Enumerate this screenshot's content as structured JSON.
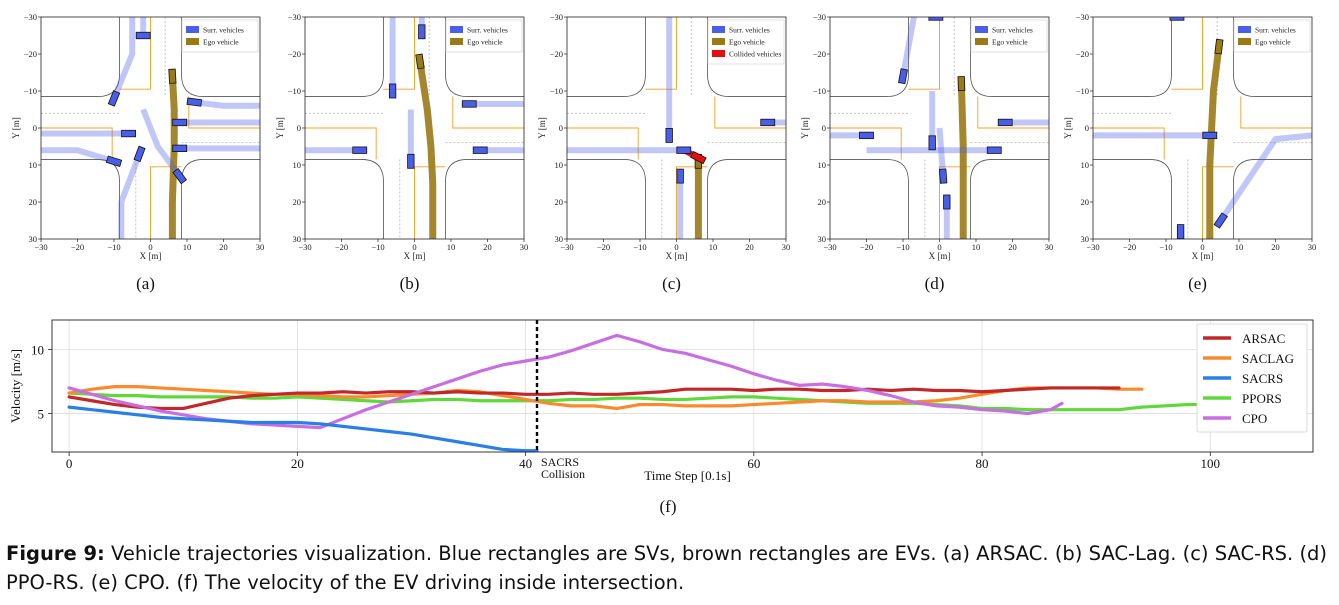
{
  "panels": [
    {
      "id": "a",
      "label": "(a)",
      "legend": [
        "Surr. vehicles",
        "Ego vehicle"
      ],
      "xlabel": "X [m]",
      "ylabel": "Y [m]"
    },
    {
      "id": "b",
      "label": "(b)",
      "legend": [
        "Surr. vehicles",
        "Ego vehicle"
      ],
      "xlabel": "X [m]",
      "ylabel": "Y [m]"
    },
    {
      "id": "c",
      "label": "(c)",
      "legend": [
        "Surr. vehicles",
        "Ego vehicle",
        "Collided vehicles"
      ],
      "xlabel": "X [m]",
      "ylabel": "Y [m]"
    },
    {
      "id": "d",
      "label": "(d)",
      "legend": [
        "Surr. vehicles",
        "Ego vehicle"
      ],
      "xlabel": "X [m]",
      "ylabel": "Y [m]"
    },
    {
      "id": "e",
      "label": "(e)",
      "legend": [
        "Surr. vehicles",
        "Ego vehicle"
      ],
      "xlabel": "X [m]",
      "ylabel": "Y [m]"
    }
  ],
  "velocity_panel_label": "(f)",
  "caption": {
    "figure_label": "Figure 9:",
    "text": " Vehicle trajectories visualization. Blue rectangles are SVs, brown rectangles are EVs. (a) ARSAC. (b) SAC-Lag. (c) SAC-RS. (d) PPO-RS. (e) CPO. (f) The velocity of the EV driving inside intersection."
  },
  "colors": {
    "surr": "#4a5ee8",
    "ego": "#9a7a16",
    "collided": "#e01010",
    "lane_orange": "#f0a020",
    "ARSAC": "#c0282a",
    "SACLAG": "#fb8a2e",
    "SACRS": "#2a7fe6",
    "PPORS": "#5fd83a",
    "CPO": "#c76ee0"
  },
  "chart_data": [
    {
      "type": "scatter",
      "title": "(a)",
      "xlabel": "X [m]",
      "ylabel": "Y [m]",
      "xlim": [
        -30,
        30
      ],
      "ylim": [
        30,
        -30
      ],
      "xticks": [
        -30,
        -20,
        -10,
        0,
        10,
        20,
        30
      ],
      "yticks": [
        -30,
        -20,
        -10,
        0,
        10,
        20,
        30
      ],
      "legend": [
        "Surr. vehicles",
        "Ego vehicle"
      ],
      "series": [
        {
          "name": "Ego vehicle",
          "x": [
            6,
            6,
            6.5,
            6.5,
            6
          ],
          "y": [
            30,
            20,
            5,
            -5,
            -14
          ]
        },
        {
          "name": "Surr. vehicles",
          "x": [
            -30,
            -20,
            -6
          ],
          "y": [
            1.5,
            1.5,
            1.5
          ]
        },
        {
          "name": "Surr. vehicles",
          "x": [
            30,
            20,
            8
          ],
          "y": [
            5.5,
            5.5,
            5.5
          ]
        },
        {
          "name": "Surr. vehicles",
          "x": [
            30,
            20,
            12
          ],
          "y": [
            -6,
            -6,
            -7
          ]
        },
        {
          "name": "Surr. vehicles",
          "x": [
            30,
            15,
            8
          ],
          "y": [
            -1.5,
            -1.5,
            -1.5
          ]
        },
        {
          "name": "Surr. vehicles",
          "x": [
            -30,
            -20,
            -10
          ],
          "y": [
            6,
            6,
            9
          ]
        },
        {
          "name": "Surr. vehicles",
          "x": [
            -5,
            -5,
            -10
          ],
          "y": [
            -30,
            -20,
            -8
          ]
        },
        {
          "name": "Surr. vehicles",
          "x": [
            -2,
            -2,
            -2
          ],
          "y": [
            -30,
            -25,
            -25
          ]
        },
        {
          "name": "Surr. vehicles",
          "x": [
            -2,
            2,
            8
          ],
          "y": [
            -5,
            5,
            13
          ]
        },
        {
          "name": "Surr. vehicles",
          "x": [
            -8,
            -8,
            -3
          ],
          "y": [
            30,
            20,
            7
          ]
        }
      ]
    },
    {
      "type": "scatter",
      "title": "(b)",
      "xlabel": "X [m]",
      "ylabel": "Y [m]",
      "xlim": [
        -30,
        30
      ],
      "ylim": [
        30,
        -30
      ],
      "xticks": [
        -30,
        -20,
        -10,
        0,
        10,
        20,
        30
      ],
      "yticks": [
        -30,
        -20,
        -10,
        0,
        10,
        20,
        30
      ],
      "legend": [
        "Surr. vehicles",
        "Ego vehicle"
      ],
      "series": [
        {
          "name": "Ego vehicle",
          "x": [
            5,
            5,
            4.5,
            3.5,
            1.5
          ],
          "y": [
            30,
            15,
            5,
            -5,
            -18
          ]
        },
        {
          "name": "Surr. vehicles",
          "x": [
            -30,
            -15
          ],
          "y": [
            6,
            6
          ]
        },
        {
          "name": "Surr. vehicles",
          "x": [
            30,
            18
          ],
          "y": [
            6,
            6
          ]
        },
        {
          "name": "Surr. vehicles",
          "x": [
            30,
            15
          ],
          "y": [
            -6.5,
            -6.5
          ]
        },
        {
          "name": "Surr. vehicles",
          "x": [
            -6,
            -6
          ],
          "y": [
            -30,
            -10
          ]
        },
        {
          "name": "Surr. vehicles",
          "x": [
            2,
            2
          ],
          "y": [
            -30,
            -26
          ]
        },
        {
          "name": "Surr. vehicles",
          "x": [
            -1,
            -1
          ],
          "y": [
            -5,
            9
          ]
        }
      ]
    },
    {
      "type": "scatter",
      "title": "(c)",
      "xlabel": "X [m]",
      "ylabel": "Y [m]",
      "xlim": [
        -30,
        30
      ],
      "ylim": [
        30,
        -30
      ],
      "xticks": [
        -30,
        -20,
        -10,
        0,
        10,
        20,
        30
      ],
      "yticks": [
        -30,
        -20,
        -10,
        0,
        10,
        20,
        30
      ],
      "legend": [
        "Surr. vehicles",
        "Ego vehicle",
        "Collided vehicles"
      ],
      "series": [
        {
          "name": "Ego vehicle",
          "x": [
            6,
            6
          ],
          "y": [
            30,
            9
          ]
        },
        {
          "name": "Collided vehicles",
          "x": [
            2,
            6
          ],
          "y": [
            6,
            8
          ]
        },
        {
          "name": "Surr. vehicles",
          "x": [
            -30,
            2
          ],
          "y": [
            6,
            6
          ]
        },
        {
          "name": "Surr. vehicles",
          "x": [
            30,
            25
          ],
          "y": [
            -1.5,
            -1.5
          ]
        },
        {
          "name": "Surr. vehicles",
          "x": [
            -2,
            -2
          ],
          "y": [
            -30,
            2
          ]
        },
        {
          "name": "Surr. vehicles",
          "x": [
            1,
            1
          ],
          "y": [
            30,
            13
          ]
        }
      ]
    },
    {
      "type": "scatter",
      "title": "(d)",
      "xlabel": "X [m]",
      "ylabel": "Y [m]",
      "xlim": [
        -30,
        30
      ],
      "ylim": [
        30,
        -30
      ],
      "xticks": [
        -30,
        -20,
        -10,
        0,
        10,
        20,
        30
      ],
      "yticks": [
        -30,
        -20,
        -10,
        0,
        10,
        20,
        30
      ],
      "legend": [
        "Surr. vehicles",
        "Ego vehicle"
      ],
      "series": [
        {
          "name": "Ego vehicle",
          "x": [
            6.5,
            6.5,
            6
          ],
          "y": [
            30,
            5,
            -12
          ]
        },
        {
          "name": "Surr. vehicles",
          "x": [
            -30,
            -20
          ],
          "y": [
            2,
            2
          ]
        },
        {
          "name": "Surr. vehicles",
          "x": [
            -20,
            15
          ],
          "y": [
            6,
            6
          ]
        },
        {
          "name": "Surr. vehicles",
          "x": [
            30,
            18
          ],
          "y": [
            -1.5,
            -1.5
          ]
        },
        {
          "name": "Surr. vehicles",
          "x": [
            -7,
            -10
          ],
          "y": [
            -30,
            -14
          ]
        },
        {
          "name": "Surr. vehicles",
          "x": [
            -2,
            -2
          ],
          "y": [
            -10,
            4
          ]
        },
        {
          "name": "Surr. vehicles",
          "x": [
            0,
            1
          ],
          "y": [
            0,
            13
          ]
        },
        {
          "name": "Surr. vehicles",
          "x": [
            2,
            2
          ],
          "y": [
            30,
            20
          ]
        },
        {
          "name": "Surr. vehicles",
          "x": [
            -1,
            -1
          ],
          "y": [
            -30,
            -30
          ]
        }
      ]
    },
    {
      "type": "scatter",
      "title": "(e)",
      "xlabel": "X [m]",
      "ylabel": "Y [m]",
      "xlim": [
        -30,
        30
      ],
      "ylim": [
        30,
        -30
      ],
      "xticks": [
        -30,
        -20,
        -10,
        0,
        10,
        20,
        30
      ],
      "yticks": [
        -30,
        -20,
        -10,
        0,
        10,
        20,
        30
      ],
      "legend": [
        "Surr. vehicles",
        "Ego vehicle"
      ],
      "series": [
        {
          "name": "Ego vehicle",
          "x": [
            2,
            2,
            3,
            4.5
          ],
          "y": [
            30,
            10,
            -10,
            -22
          ]
        },
        {
          "name": "Surr. vehicles",
          "x": [
            -30,
            2
          ],
          "y": [
            2,
            2
          ]
        },
        {
          "name": "Surr. vehicles",
          "x": [
            30,
            20,
            5
          ],
          "y": [
            2,
            3,
            25
          ]
        },
        {
          "name": "Surr. vehicles",
          "x": [
            -6,
            -6
          ],
          "y": [
            30,
            28
          ]
        },
        {
          "name": "Surr. vehicles",
          "x": [
            -7,
            -7
          ],
          "y": [
            -30,
            -30
          ]
        }
      ]
    },
    {
      "type": "line",
      "title": "(f)",
      "xlabel": "Time Step [0.1s]",
      "ylabel": "Velocity [m/s]",
      "xlim": [
        -1.5,
        109
      ],
      "ylim": [
        2,
        12.3
      ],
      "xticks": [
        0,
        20,
        40,
        60,
        80,
        100
      ],
      "yticks": [
        5,
        10
      ],
      "annotation": {
        "x": 41,
        "text_line1": "SACRS",
        "text_line2": "Collision"
      },
      "legend": [
        "ARSAC",
        "SACLAG",
        "SACRS",
        "PPORS",
        "CPO"
      ],
      "series": [
        {
          "name": "ARSAC",
          "x": [
            0,
            2,
            4,
            6,
            8,
            10,
            12,
            14,
            16,
            18,
            20,
            22,
            24,
            26,
            28,
            30,
            32,
            34,
            36,
            38,
            40,
            42,
            44,
            46,
            48,
            50,
            52,
            54,
            56,
            58,
            60,
            62,
            64,
            66,
            68,
            70,
            72,
            74,
            76,
            78,
            80,
            82,
            84,
            86,
            88,
            90,
            92
          ],
          "values": [
            6.3,
            6.0,
            5.7,
            5.5,
            5.4,
            5.4,
            5.8,
            6.2,
            6.4,
            6.5,
            6.6,
            6.6,
            6.7,
            6.6,
            6.7,
            6.7,
            6.6,
            6.7,
            6.6,
            6.6,
            6.5,
            6.5,
            6.6,
            6.5,
            6.5,
            6.6,
            6.7,
            6.9,
            6.9,
            6.9,
            6.8,
            6.9,
            6.9,
            6.8,
            6.8,
            6.9,
            6.8,
            6.9,
            6.8,
            6.8,
            6.7,
            6.8,
            6.9,
            7.0,
            7.0,
            7.0,
            7.0
          ]
        },
        {
          "name": "SACLAG",
          "x": [
            0,
            2,
            4,
            6,
            8,
            10,
            12,
            14,
            16,
            18,
            20,
            22,
            24,
            26,
            28,
            30,
            32,
            34,
            36,
            38,
            40,
            42,
            44,
            46,
            48,
            50,
            52,
            54,
            56,
            58,
            60,
            62,
            64,
            66,
            68,
            70,
            72,
            74,
            76,
            78,
            80,
            82,
            84,
            86,
            88,
            90,
            92,
            94
          ],
          "values": [
            6.6,
            6.9,
            7.1,
            7.1,
            7.0,
            6.9,
            6.8,
            6.7,
            6.6,
            6.5,
            6.5,
            6.4,
            6.3,
            6.3,
            6.4,
            6.5,
            6.6,
            6.8,
            6.7,
            6.4,
            6.1,
            5.8,
            5.6,
            5.6,
            5.4,
            5.7,
            5.7,
            5.6,
            5.6,
            5.6,
            5.7,
            5.8,
            5.9,
            6.0,
            6.0,
            5.9,
            5.9,
            5.9,
            6.0,
            6.2,
            6.5,
            6.8,
            7.0,
            7.0,
            7.0,
            7.0,
            6.9,
            6.9
          ]
        },
        {
          "name": "SACRS",
          "x": [
            0,
            2,
            4,
            6,
            8,
            10,
            12,
            14,
            16,
            18,
            20,
            22,
            24,
            26,
            28,
            30,
            32,
            34,
            36,
            38,
            40,
            41
          ],
          "values": [
            5.5,
            5.3,
            5.1,
            4.9,
            4.7,
            4.6,
            4.5,
            4.4,
            4.3,
            4.3,
            4.3,
            4.2,
            4.0,
            3.8,
            3.6,
            3.4,
            3.1,
            2.8,
            2.5,
            2.2,
            2.1,
            2.1
          ]
        },
        {
          "name": "PPORS",
          "x": [
            0,
            2,
            4,
            6,
            8,
            10,
            12,
            14,
            16,
            18,
            20,
            22,
            24,
            26,
            28,
            30,
            32,
            34,
            36,
            38,
            40,
            42,
            44,
            46,
            48,
            50,
            52,
            54,
            56,
            58,
            60,
            62,
            64,
            66,
            68,
            70,
            72,
            74,
            76,
            78,
            80,
            82,
            84,
            86,
            88,
            90,
            92,
            94,
            96,
            98,
            100,
            102,
            104,
            106,
            108
          ],
          "values": [
            6.6,
            6.5,
            6.4,
            6.4,
            6.3,
            6.3,
            6.3,
            6.3,
            6.2,
            6.2,
            6.3,
            6.2,
            6.1,
            6.0,
            5.9,
            6.0,
            6.1,
            6.1,
            6.0,
            6.0,
            6.0,
            6.0,
            6.1,
            6.1,
            6.2,
            6.2,
            6.1,
            6.1,
            6.2,
            6.3,
            6.3,
            6.2,
            6.1,
            6.0,
            5.9,
            5.8,
            5.8,
            5.8,
            5.7,
            5.6,
            5.4,
            5.4,
            5.3,
            5.3,
            5.3,
            5.3,
            5.3,
            5.5,
            5.6,
            5.7,
            5.7,
            5.6,
            5.6,
            5.6,
            5.6
          ]
        },
        {
          "name": "CPO",
          "x": [
            0,
            2,
            4,
            6,
            8,
            10,
            12,
            14,
            16,
            18,
            20,
            22,
            24,
            26,
            28,
            30,
            32,
            34,
            36,
            38,
            40,
            42,
            44,
            46,
            48,
            50,
            52,
            54,
            56,
            58,
            60,
            62,
            64,
            66,
            68,
            70,
            72,
            74,
            76,
            78,
            80,
            82,
            84,
            86,
            87
          ],
          "values": [
            7.0,
            6.5,
            6.0,
            5.6,
            5.2,
            4.9,
            4.6,
            4.4,
            4.2,
            4.1,
            4.0,
            3.9,
            4.6,
            5.3,
            5.9,
            6.5,
            7.1,
            7.7,
            8.3,
            8.8,
            9.1,
            9.4,
            9.9,
            10.5,
            11.1,
            10.6,
            10.0,
            9.7,
            9.2,
            8.7,
            8.1,
            7.6,
            7.2,
            7.3,
            7.1,
            6.8,
            6.4,
            5.9,
            5.6,
            5.5,
            5.3,
            5.2,
            5.0,
            5.3,
            5.8
          ]
        }
      ]
    }
  ]
}
